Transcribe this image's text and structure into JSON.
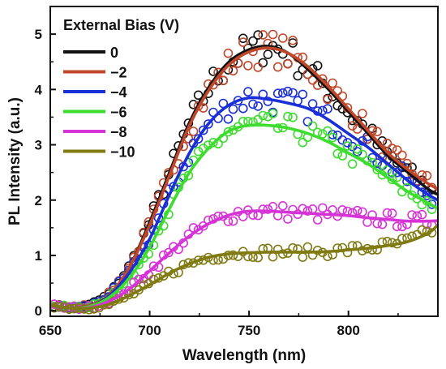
{
  "chart_data": {
    "type": "line",
    "xlabel": "Wavelength (nm)",
    "ylabel": "PL Intensity (a.u.)",
    "xlim": [
      650,
      845
    ],
    "ylim": [
      -0.1,
      5.5
    ],
    "x_ticks": [
      650,
      700,
      750,
      800
    ],
    "y_ticks": [
      0,
      1,
      2,
      3,
      4,
      5
    ],
    "legend_title": "External Bias (V)",
    "legend_position": "top-left",
    "grid": false,
    "series": [
      {
        "name": "0",
        "color": "#111111",
        "x": [
          650,
          660,
          670,
          680,
          690,
          700,
          710,
          720,
          730,
          740,
          750,
          760,
          770,
          780,
          790,
          800,
          810,
          820,
          830,
          840,
          845
        ],
        "y": [
          0.1,
          0.05,
          0.1,
          0.3,
          0.8,
          1.6,
          2.5,
          3.4,
          4.05,
          4.5,
          4.72,
          4.78,
          4.65,
          4.35,
          4.0,
          3.6,
          3.2,
          2.8,
          2.5,
          2.2,
          2.1
        ]
      },
      {
        "name": "−2",
        "color": "#c0472a",
        "x": [
          650,
          660,
          670,
          680,
          690,
          700,
          710,
          720,
          730,
          740,
          750,
          760,
          770,
          780,
          790,
          800,
          810,
          820,
          830,
          840,
          845
        ],
        "y": [
          0.1,
          0.05,
          0.1,
          0.3,
          0.8,
          1.55,
          2.45,
          3.35,
          4.0,
          4.45,
          4.68,
          4.75,
          4.65,
          4.4,
          4.05,
          3.65,
          3.25,
          2.85,
          2.55,
          2.3,
          2.2
        ]
      },
      {
        "name": "−4",
        "color": "#1a2fd6",
        "x": [
          650,
          660,
          670,
          680,
          690,
          700,
          710,
          720,
          730,
          740,
          750,
          760,
          770,
          780,
          790,
          800,
          810,
          820,
          830,
          840,
          845
        ],
        "y": [
          0.1,
          0.05,
          0.08,
          0.28,
          0.7,
          1.3,
          2.1,
          2.85,
          3.4,
          3.72,
          3.85,
          3.82,
          3.75,
          3.65,
          3.45,
          3.2,
          2.95,
          2.65,
          2.35,
          2.1,
          2.0
        ]
      },
      {
        "name": "−6",
        "color": "#3ddc2e",
        "x": [
          650,
          660,
          670,
          680,
          690,
          700,
          710,
          720,
          730,
          740,
          750,
          760,
          770,
          780,
          790,
          800,
          810,
          820,
          830,
          840,
          845
        ],
        "y": [
          0.1,
          0.05,
          0.08,
          0.25,
          0.6,
          1.15,
          1.85,
          2.5,
          2.95,
          3.25,
          3.35,
          3.35,
          3.3,
          3.2,
          3.05,
          2.85,
          2.65,
          2.4,
          2.15,
          1.95,
          1.85
        ]
      },
      {
        "name": "−8",
        "color": "#d633d6",
        "x": [
          650,
          660,
          670,
          680,
          690,
          700,
          710,
          720,
          730,
          740,
          750,
          760,
          770,
          780,
          790,
          800,
          810,
          820,
          830,
          840,
          845
        ],
        "y": [
          0.1,
          0.05,
          0.06,
          0.18,
          0.4,
          0.72,
          1.05,
          1.35,
          1.58,
          1.73,
          1.8,
          1.8,
          1.78,
          1.76,
          1.74,
          1.72,
          1.68,
          1.65,
          1.62,
          1.62,
          1.63
        ]
      },
      {
        "name": "−10",
        "color": "#807a12",
        "x": [
          650,
          660,
          670,
          680,
          690,
          700,
          710,
          720,
          730,
          740,
          750,
          760,
          770,
          780,
          790,
          800,
          810,
          820,
          830,
          840,
          845
        ],
        "y": [
          0.1,
          0.05,
          0.05,
          0.12,
          0.28,
          0.47,
          0.68,
          0.85,
          0.97,
          1.03,
          1.05,
          1.06,
          1.06,
          1.06,
          1.07,
          1.1,
          1.13,
          1.18,
          1.25,
          1.4,
          1.55
        ]
      }
    ]
  }
}
